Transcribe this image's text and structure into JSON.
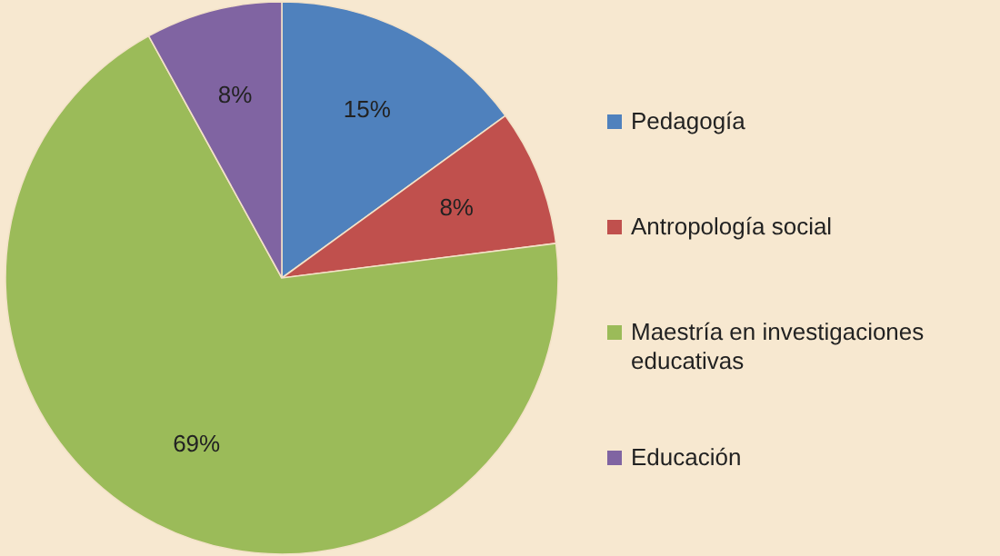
{
  "chart_data": {
    "type": "pie",
    "categories": [
      "Pedagogía",
      "Antropología social",
      "Maestría en investigaciones educativas",
      "Educación"
    ],
    "values": [
      15,
      8,
      69,
      8
    ],
    "colors": [
      "#4f81bd",
      "#c0504d",
      "#9bbb59",
      "#8064a2"
    ],
    "value_labels": [
      "15%",
      "8%",
      "69%",
      "8%"
    ],
    "legend": "right"
  }
}
